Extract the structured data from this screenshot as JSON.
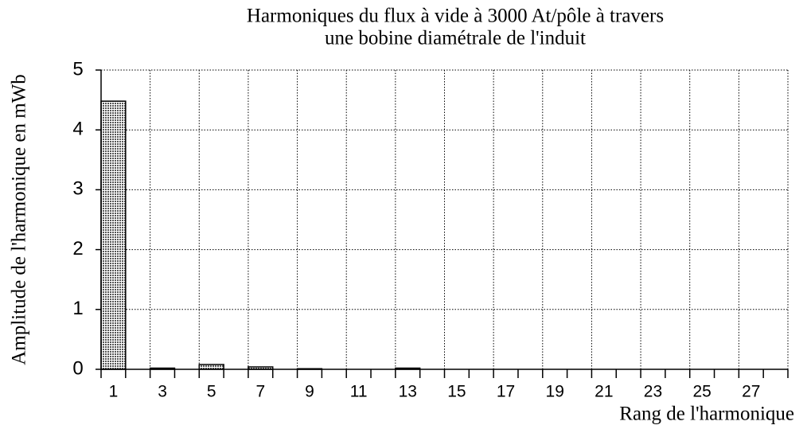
{
  "chart_data": {
    "type": "bar",
    "title": [
      "Harmoniques du flux à vide à 3000 At/pôle à travers",
      "une bobine diamétrale de l'induit"
    ],
    "x_label": "Rang de l'harmonique",
    "y_label": "Amplitude de l'harmonique en mWb",
    "categories": [
      "1",
      null,
      "3",
      null,
      "5",
      null,
      "7",
      null,
      "9",
      null,
      "11",
      null,
      "13",
      null,
      "15",
      null,
      "17",
      null,
      "19",
      null,
      "21",
      null,
      "23",
      null,
      "25",
      null,
      "27",
      null
    ],
    "values": [
      4.48,
      0,
      0.02,
      0,
      0.08,
      0,
      0.04,
      0,
      0.01,
      0,
      0,
      0,
      0.02,
      0,
      0,
      0,
      0,
      0,
      0,
      0,
      0,
      0,
      0,
      0,
      0,
      0,
      0,
      0
    ],
    "color": "#555555",
    "ylim": [
      0,
      5
    ],
    "yticks": [
      0,
      1,
      2,
      3,
      4,
      5
    ],
    "grid": true
  }
}
